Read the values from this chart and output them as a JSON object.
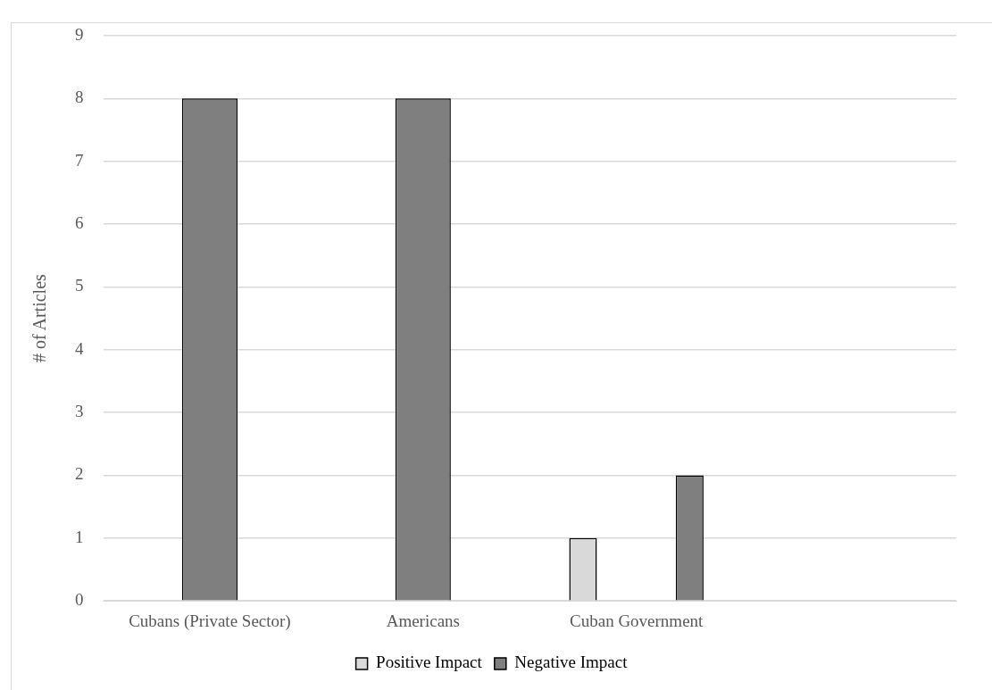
{
  "chart_data": {
    "type": "bar",
    "ylabel": "# of Articles",
    "categories": [
      "Cubans (Private Sector)",
      "Americans",
      "Cuban Government",
      null
    ],
    "series": [
      {
        "name": "Positive Impact",
        "color": "#d9d9d9",
        "values": [
          null,
          null,
          1,
          null
        ]
      },
      {
        "name": "Negative Impact",
        "color": "#7f7f7f",
        "values": [
          8,
          8,
          2,
          null
        ]
      }
    ],
    "ylim": [
      0,
      9
    ],
    "yticks": [
      0,
      1,
      2,
      3,
      4,
      5,
      6,
      7,
      8,
      9
    ],
    "grid": "y",
    "legend": "bottom"
  }
}
